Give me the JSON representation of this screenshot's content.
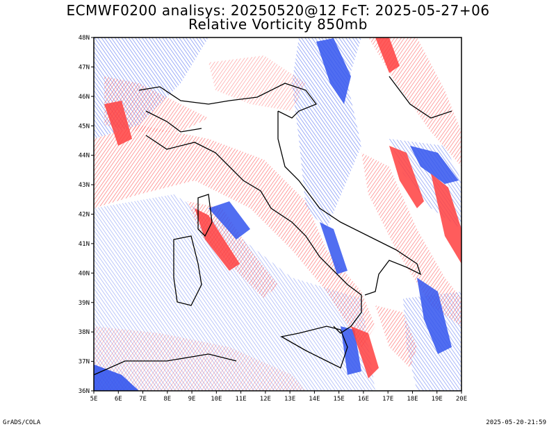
{
  "title_line1": "ECMWF0200 analisys: 20250520@12 FcT: 2025-05-27+06",
  "title_line2": "Relative Vorticity 850mb",
  "footer_left": "GrADS/COLA",
  "footer_right": "2025-05-20-21:59",
  "map": {
    "lon_range": [
      5,
      20
    ],
    "lat_range": [
      36,
      48
    ],
    "lon_ticks": [
      "5E",
      "6E",
      "7E",
      "8E",
      "9E",
      "10E",
      "11E",
      "12E",
      "13E",
      "14E",
      "15E",
      "16E",
      "17E",
      "18E",
      "19E",
      "20E"
    ],
    "lat_ticks": [
      "36N",
      "37N",
      "38N",
      "39N",
      "40N",
      "41N",
      "42N",
      "43N",
      "44N",
      "45N",
      "46N",
      "47N",
      "48N"
    ],
    "colors": {
      "positive": "#ff4040",
      "negative": "#3355ee",
      "coastline": "#000000"
    }
  }
}
